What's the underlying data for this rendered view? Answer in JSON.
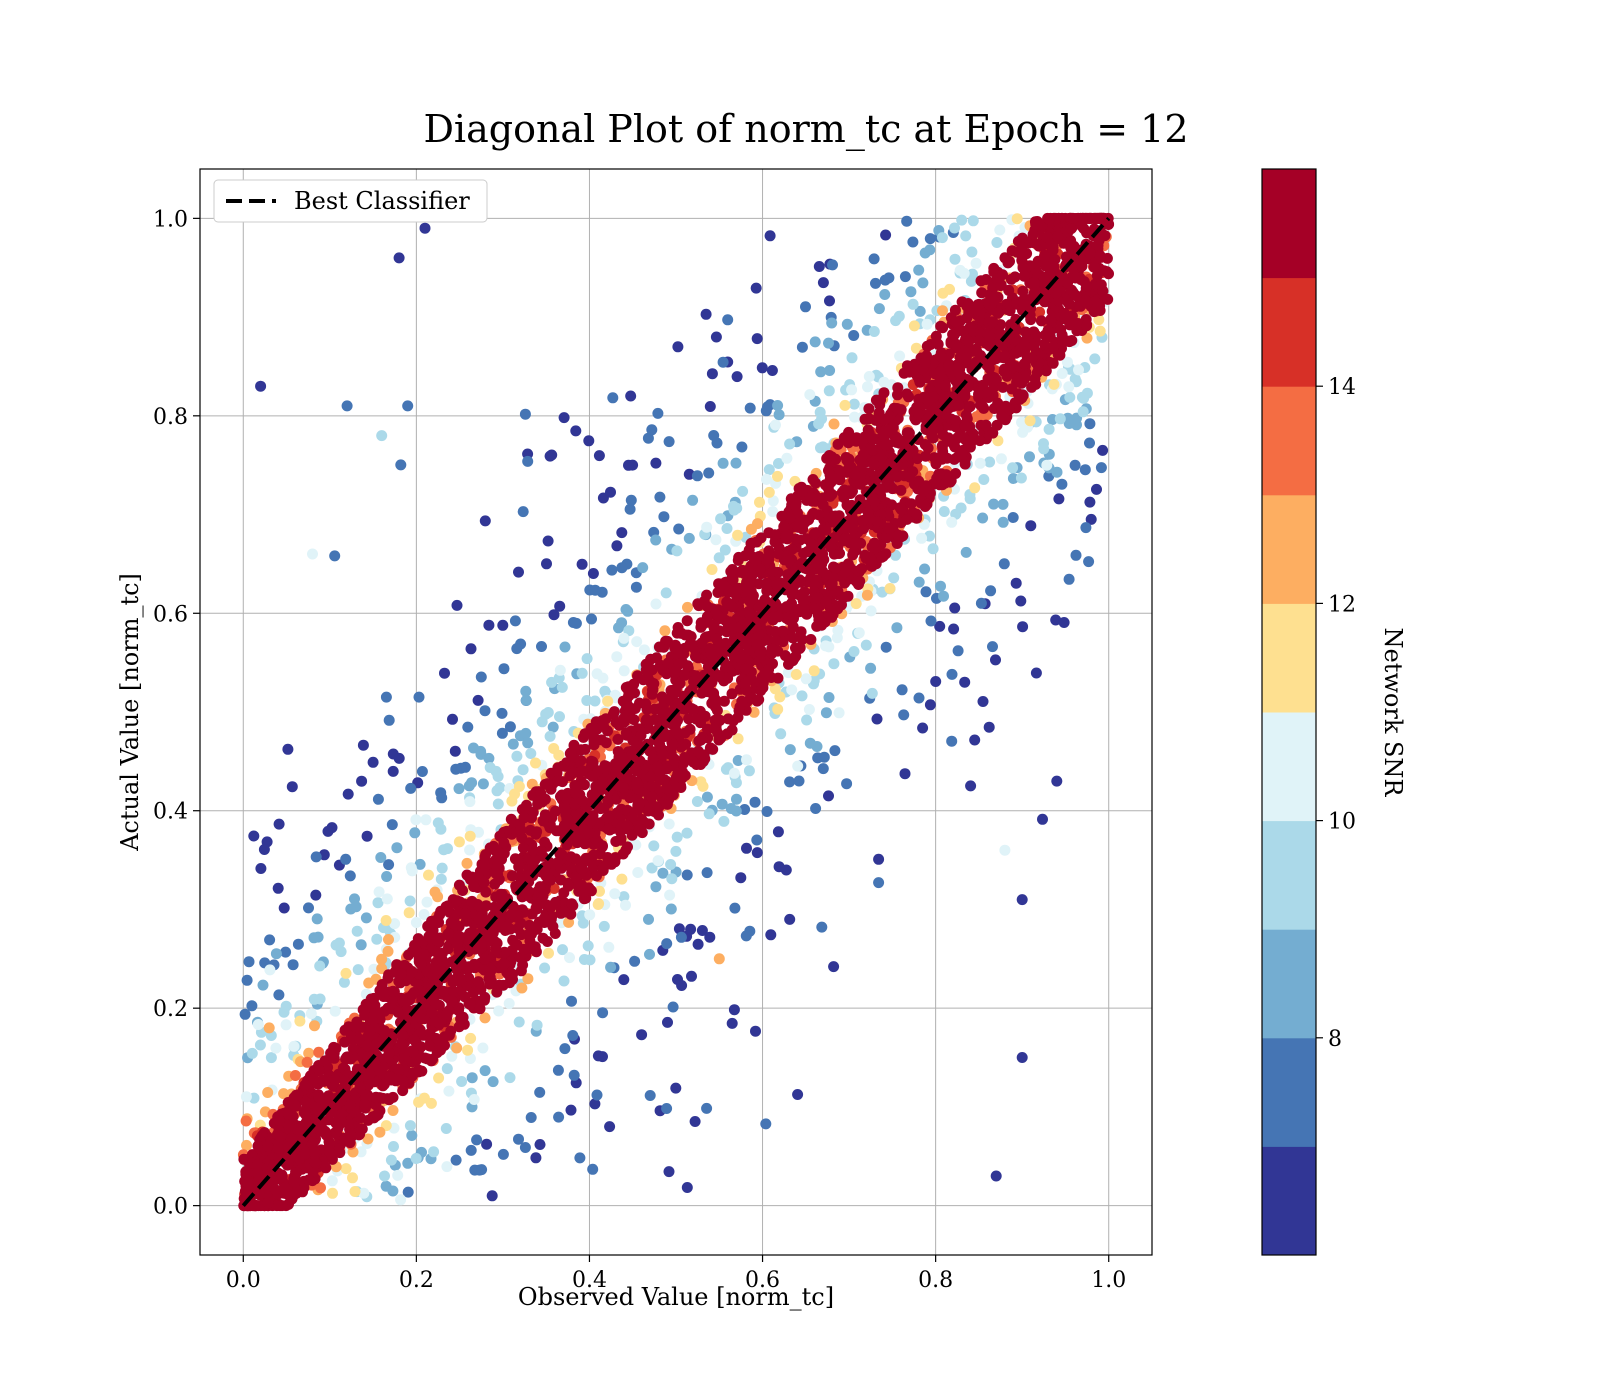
{
  "chart_data": {
    "type": "scatter",
    "title": "Diagonal Plot of norm_tc at Epoch = 12",
    "xlabel": "Observed Value [norm_tc]",
    "ylabel": "Actual Value [norm_tc]",
    "xlim": [
      -0.05,
      1.05
    ],
    "ylim": [
      -0.05,
      1.05
    ],
    "xticks": [
      "0.0",
      "0.2",
      "0.4",
      "0.6",
      "0.8",
      "1.0"
    ],
    "yticks": [
      "0.0",
      "0.2",
      "0.4",
      "0.6",
      "0.8",
      "1.0"
    ],
    "grid": true,
    "legend": {
      "position": "upper-left",
      "entries": [
        "Best Classifier"
      ]
    },
    "reference_line": {
      "name": "Best Classifier",
      "x": [
        0,
        1
      ],
      "y": [
        0,
        1
      ],
      "style": "dashed",
      "color": "#000000"
    },
    "colorbar": {
      "label": "Network SNR",
      "range": [
        6,
        16
      ],
      "tick_labels": [
        "8",
        "10",
        "12",
        "14"
      ],
      "tick_values": [
        8,
        10,
        12,
        14
      ],
      "colors": [
        "#313695",
        "#4575b4",
        "#74add1",
        "#abd9e9",
        "#e0f3f8",
        "#fee090",
        "#fdae61",
        "#f46d43",
        "#d73027",
        "#a50026"
      ]
    },
    "scatter_description_points": [
      {
        "x": 0.02,
        "y": 0.83,
        "snr": 6.2
      },
      {
        "x": 0.18,
        "y": 0.96,
        "snr": 6.2
      },
      {
        "x": 0.21,
        "y": 0.99,
        "snr": 6.2
      },
      {
        "x": 0.12,
        "y": 0.81,
        "snr": 7.5
      },
      {
        "x": 0.19,
        "y": 0.81,
        "snr": 7.5
      },
      {
        "x": 0.16,
        "y": 0.78,
        "snr": 9.5
      },
      {
        "x": 0.08,
        "y": 0.66,
        "snr": 10.5
      },
      {
        "x": 0.9,
        "y": 0.31,
        "snr": 6.2
      },
      {
        "x": 0.9,
        "y": 0.15,
        "snr": 6.2
      },
      {
        "x": 0.87,
        "y": 0.03,
        "snr": 6.2
      },
      {
        "x": 0.94,
        "y": 0.43,
        "snr": 6.2
      },
      {
        "x": 0.88,
        "y": 0.36,
        "snr": 10.5
      },
      {
        "x": 0.03,
        "y": 0.18,
        "snr": 12.5
      },
      {
        "x": 0.67,
        "y": 0.71,
        "snr": 15.5
      },
      {
        "x": 0.55,
        "y": 0.25,
        "snr": 12.0
      }
    ]
  }
}
